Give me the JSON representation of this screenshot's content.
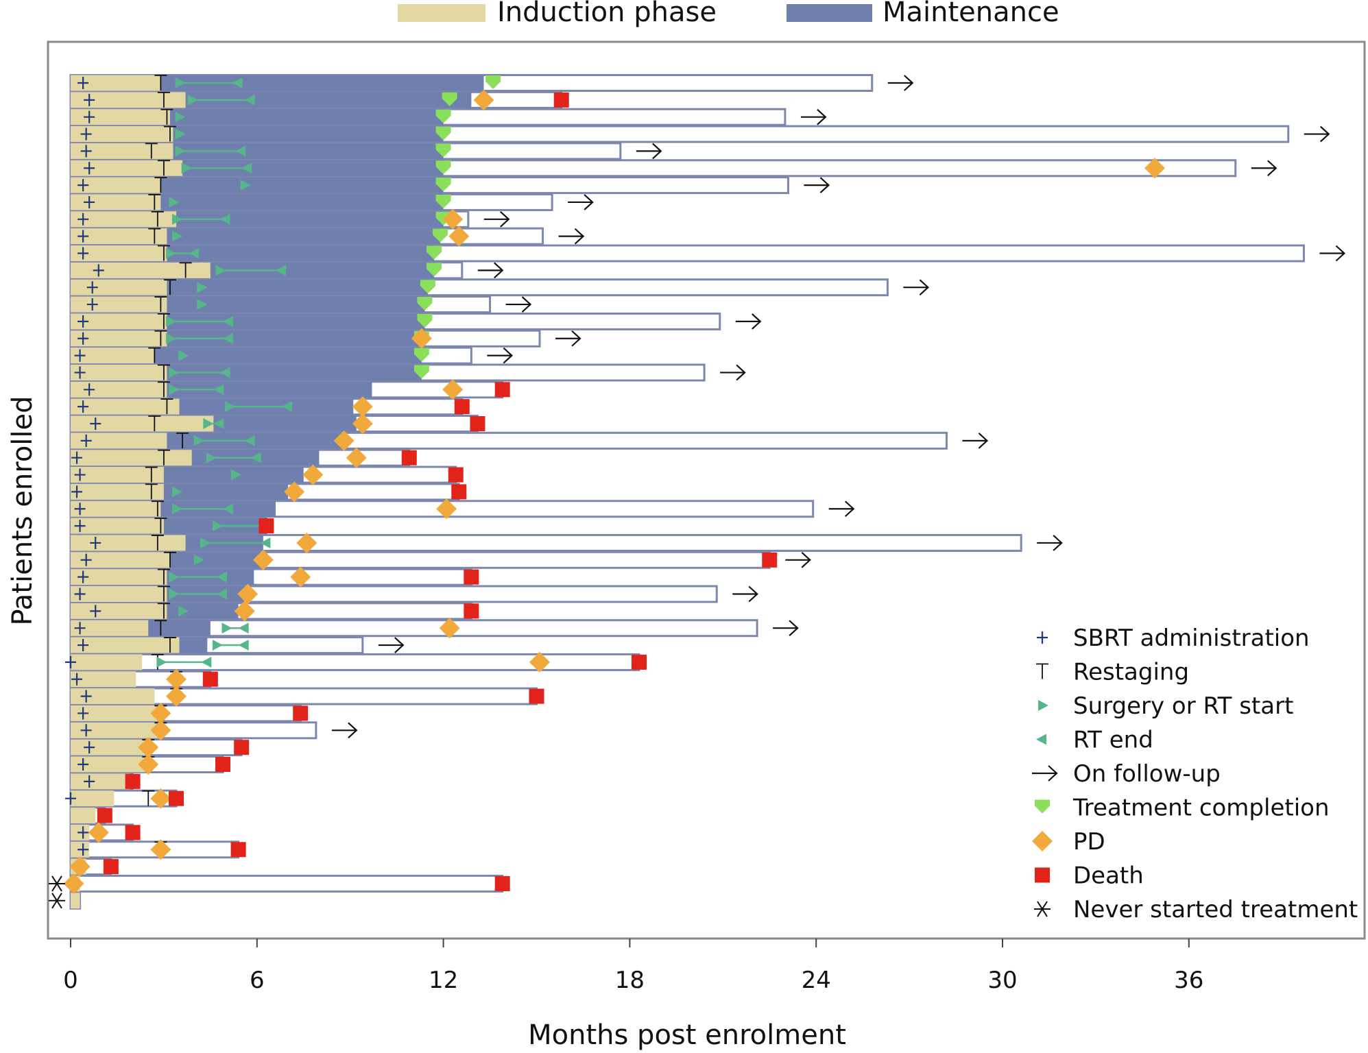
{
  "chart_data": {
    "type": "swimmer",
    "title": "",
    "xlabel": "Months post enrolment",
    "ylabel": "Patients enrolled",
    "xlim": [
      -0.8,
      41.5
    ],
    "xticks": [
      0,
      6,
      12,
      18,
      24,
      30,
      36
    ],
    "phase_legend": [
      "Induction phase",
      "Maintenance"
    ],
    "marker_legend": {
      "sbrt": "SBRT administration",
      "restage": "Restaging",
      "rtstart": "Surgery or RT start",
      "rtend": "RT end",
      "followup": "On follow-up",
      "complete": "Treatment completion",
      "pd": "PD",
      "death": "Death",
      "never": "Never started treatment"
    },
    "colors": {
      "induction": "#e3d7a3",
      "maintenance": "#6f7fae",
      "bar_outline": "#7d87ad",
      "sbrt": "#1f3a78",
      "rtmarker": "#57b58a",
      "complete": "#8ae05a",
      "pd": "#f2a93b",
      "death": "#e2231a"
    },
    "patients": [
      {
        "induction": 2.9,
        "maintenance": 13.3,
        "end": 25.8,
        "followup": true,
        "sbrt": 0.4,
        "restage": [
          2.9
        ],
        "rt": [
          3.5,
          5.4
        ],
        "complete": 13.6,
        "pd": null,
        "death": null
      },
      {
        "induction": 3.7,
        "maintenance": 12.9,
        "end": 15.8,
        "followup": false,
        "sbrt": 0.6,
        "restage": [
          3.0
        ],
        "rt": [
          3.9,
          5.8
        ],
        "complete": 12.2,
        "pd": 13.3,
        "death": 15.8
      },
      {
        "induction": 3.2,
        "maintenance": 12.0,
        "end": 23.0,
        "followup": true,
        "sbrt": 0.6,
        "restage": [
          3.1
        ],
        "rt": [
          3.5
        ],
        "complete": 12.0,
        "pd": null,
        "death": null
      },
      {
        "induction": 3.3,
        "maintenance": 12.0,
        "end": 39.2,
        "followup": true,
        "sbrt": 0.5,
        "restage": [
          3.2
        ],
        "rt": [
          3.5
        ],
        "complete": 12.0,
        "pd": null,
        "death": null
      },
      {
        "induction": 3.3,
        "maintenance": 12.0,
        "end": 17.7,
        "followup": true,
        "sbrt": 0.5,
        "restage": [
          2.6
        ],
        "rt": [
          3.5,
          5.5
        ],
        "complete": 12.0,
        "pd": null,
        "death": null
      },
      {
        "induction": 3.6,
        "maintenance": 12.0,
        "end": 37.5,
        "followup": true,
        "sbrt": 0.6,
        "restage": [
          3.0
        ],
        "rt": [
          3.7,
          5.7
        ],
        "complete": 12.0,
        "pd": 34.9,
        "death": null
      },
      {
        "induction": 2.9,
        "maintenance": 12.0,
        "end": 23.1,
        "followup": true,
        "sbrt": 0.4,
        "restage": [
          2.9
        ],
        "rt": [
          5.6
        ],
        "complete": 12.0,
        "pd": null,
        "death": null
      },
      {
        "induction": 2.9,
        "maintenance": 12.0,
        "end": 15.5,
        "followup": true,
        "sbrt": 0.6,
        "restage": [
          2.7
        ],
        "rt": [
          3.3
        ],
        "complete": 12.0,
        "pd": null,
        "death": null
      },
      {
        "induction": 3.4,
        "maintenance": 12.0,
        "end": 12.8,
        "followup": true,
        "sbrt": 0.4,
        "restage": [
          2.8
        ],
        "rt": [
          3.4,
          5.0
        ],
        "complete": 12.0,
        "pd": 12.3,
        "death": null
      },
      {
        "induction": 3.1,
        "maintenance": 11.9,
        "end": 15.2,
        "followup": true,
        "sbrt": 0.4,
        "restage": [
          2.7
        ],
        "rt": [
          3.4
        ],
        "complete": 11.9,
        "pd": 12.5,
        "death": null
      },
      {
        "induction": 3.1,
        "maintenance": 11.7,
        "end": 39.7,
        "followup": true,
        "sbrt": 0.4,
        "restage": [
          3.0
        ],
        "rt": [
          3.2,
          4.0
        ],
        "complete": 11.7,
        "pd": null,
        "death": null
      },
      {
        "induction": 4.5,
        "maintenance": 11.7,
        "end": 12.6,
        "followup": true,
        "sbrt": 0.9,
        "restage": [
          3.7
        ],
        "rt": [
          4.8,
          6.8
        ],
        "complete": 11.7,
        "pd": null,
        "death": null
      },
      {
        "induction": 3.1,
        "maintenance": 11.5,
        "end": 26.3,
        "followup": true,
        "sbrt": 0.7,
        "restage": [
          3.2
        ],
        "rt": [
          4.2
        ],
        "complete": 11.5,
        "pd": null,
        "death": null
      },
      {
        "induction": 3.1,
        "maintenance": 11.4,
        "end": 13.5,
        "followup": true,
        "sbrt": 0.7,
        "restage": [
          2.9
        ],
        "rt": [
          4.2
        ],
        "complete": 11.4,
        "pd": null,
        "death": null
      },
      {
        "induction": 3.1,
        "maintenance": 11.4,
        "end": 20.9,
        "followup": true,
        "sbrt": 0.4,
        "restage": [
          3.0
        ],
        "rt": [
          3.2,
          5.1
        ],
        "complete": 11.4,
        "pd": null,
        "death": null
      },
      {
        "induction": 3.1,
        "maintenance": 11.3,
        "end": 15.1,
        "followup": true,
        "sbrt": 0.4,
        "restage": [
          2.9
        ],
        "rt": [
          3.2,
          5.1
        ],
        "complete": 11.3,
        "pd": 11.3,
        "death": null
      },
      {
        "induction": 2.7,
        "maintenance": 11.3,
        "end": 12.9,
        "followup": true,
        "sbrt": 0.3,
        "restage": [
          2.7
        ],
        "rt": [
          3.6
        ],
        "complete": 11.3,
        "pd": null,
        "death": null
      },
      {
        "induction": 3.1,
        "maintenance": 11.3,
        "end": 20.4,
        "followup": true,
        "sbrt": 0.3,
        "restage": [
          3.0
        ],
        "rt": [
          3.3,
          5.0
        ],
        "complete": 11.3,
        "pd": null,
        "death": null
      },
      {
        "induction": 3.1,
        "maintenance": 9.7,
        "end": 13.9,
        "followup": false,
        "sbrt": 0.6,
        "restage": [
          3.0
        ],
        "rt": [
          3.3,
          4.8
        ],
        "complete": null,
        "pd": 12.3,
        "death": 13.9
      },
      {
        "induction": 3.5,
        "maintenance": 9.1,
        "end": 12.6,
        "followup": false,
        "sbrt": 0.4,
        "restage": [
          3.1
        ],
        "rt": [
          5.1,
          7.0
        ],
        "complete": null,
        "pd": 9.4,
        "death": 12.6
      },
      {
        "induction": 4.6,
        "maintenance": 9.2,
        "end": 13.1,
        "followup": false,
        "sbrt": 0.8,
        "restage": [
          2.7
        ],
        "rt": [
          4.4,
          4.8
        ],
        "complete": null,
        "pd": 9.4,
        "death": 13.1
      },
      {
        "induction": 3.1,
        "maintenance": 8.8,
        "end": 28.2,
        "followup": true,
        "sbrt": 0.5,
        "restage": [
          3.6
        ],
        "rt": [
          4.1,
          5.8
        ],
        "complete": null,
        "pd": 8.8,
        "death": null
      },
      {
        "induction": 3.9,
        "maintenance": 8.0,
        "end": 10.9,
        "followup": false,
        "sbrt": 0.2,
        "restage": [
          3.0
        ],
        "rt": [
          4.5,
          6.0
        ],
        "complete": null,
        "pd": 9.2,
        "death": 10.9
      },
      {
        "induction": 3.0,
        "maintenance": 7.5,
        "end": 12.4,
        "followup": false,
        "sbrt": 0.3,
        "restage": [
          2.6
        ],
        "rt": [
          5.3
        ],
        "complete": null,
        "pd": 7.8,
        "death": 12.4
      },
      {
        "induction": 3.0,
        "maintenance": 7.0,
        "end": 12.5,
        "followup": false,
        "sbrt": 0.2,
        "restage": [
          2.6
        ],
        "rt": [
          3.4
        ],
        "complete": null,
        "pd": 7.2,
        "death": 12.5
      },
      {
        "induction": 2.9,
        "maintenance": 6.6,
        "end": 23.9,
        "followup": true,
        "sbrt": 0.3,
        "restage": [
          2.8
        ],
        "rt": [
          3.4,
          5.1
        ],
        "complete": null,
        "pd": 12.1,
        "death": null
      },
      {
        "induction": 3.0,
        "maintenance": 6.3,
        "end": 6.3,
        "followup": false,
        "sbrt": 0.3,
        "restage": [
          2.9
        ],
        "rt": [
          4.7,
          6.2
        ],
        "complete": null,
        "pd": null,
        "death": 6.3
      },
      {
        "induction": 3.7,
        "maintenance": 6.2,
        "end": 30.6,
        "followup": true,
        "sbrt": 0.8,
        "restage": [
          2.8
        ],
        "rt": [
          4.3,
          6.3
        ],
        "complete": null,
        "pd": 7.6,
        "death": null
      },
      {
        "induction": 3.2,
        "maintenance": 6.1,
        "end": 22.5,
        "followup": true,
        "sbrt": 0.5,
        "restage": [
          3.2
        ],
        "rt": [
          4.1
        ],
        "complete": null,
        "pd": 6.2,
        "death": 22.5
      },
      {
        "induction": 3.1,
        "maintenance": 5.9,
        "end": 12.9,
        "followup": false,
        "sbrt": 0.4,
        "restage": [
          3.0
        ],
        "rt": [
          3.3,
          4.9
        ],
        "complete": null,
        "pd": 7.4,
        "death": 12.9
      },
      {
        "induction": 3.1,
        "maintenance": 5.8,
        "end": 20.8,
        "followup": true,
        "sbrt": 0.3,
        "restage": [
          3.0
        ],
        "rt": [
          3.3,
          4.9
        ],
        "complete": null,
        "pd": 5.7,
        "death": null
      },
      {
        "induction": 3.1,
        "maintenance": 5.4,
        "end": 12.9,
        "followup": false,
        "sbrt": 0.8,
        "restage": [
          3.0
        ],
        "rt": [
          3.6
        ],
        "complete": null,
        "pd": 5.6,
        "death": 12.9
      },
      {
        "induction": 2.5,
        "maintenance": 4.5,
        "end": 22.1,
        "followup": true,
        "sbrt": 0.3,
        "restage": [
          2.9
        ],
        "rt": [
          5.0,
          5.6
        ],
        "complete": null,
        "pd": 12.2,
        "death": null
      },
      {
        "induction": 3.5,
        "maintenance": 4.4,
        "end": 9.4,
        "followup": true,
        "sbrt": 0.4,
        "restage": [
          3.2
        ],
        "rt": [
          4.7,
          5.6
        ],
        "complete": null,
        "pd": null,
        "death": null
      },
      {
        "induction": 2.3,
        "maintenance": null,
        "end": 18.3,
        "followup": false,
        "sbrt": 0.0,
        "restage": [
          2.8
        ],
        "rt": [
          2.9,
          4.4
        ],
        "complete": null,
        "pd": 15.1,
        "death": 18.3
      },
      {
        "induction": 2.1,
        "maintenance": null,
        "end": 4.5,
        "followup": false,
        "sbrt": 0.2,
        "restage": [
          3.4
        ],
        "rt": [],
        "complete": null,
        "pd": 3.4,
        "death": 4.5
      },
      {
        "induction": 2.7,
        "maintenance": null,
        "end": 15.0,
        "followup": false,
        "sbrt": 0.5,
        "restage": [
          3.4
        ],
        "rt": [],
        "complete": null,
        "pd": 3.4,
        "death": 15.0
      },
      {
        "induction": 2.9,
        "maintenance": null,
        "end": 7.4,
        "followup": false,
        "sbrt": 0.4,
        "restage": [
          2.9
        ],
        "rt": [],
        "complete": null,
        "pd": 2.9,
        "death": 7.4
      },
      {
        "induction": 2.9,
        "maintenance": null,
        "end": 7.9,
        "followup": true,
        "sbrt": 0.5,
        "restage": [
          2.9
        ],
        "rt": [],
        "complete": null,
        "pd": 2.9,
        "death": null
      },
      {
        "induction": 2.5,
        "maintenance": null,
        "end": 5.5,
        "followup": false,
        "sbrt": 0.6,
        "restage": [
          2.5
        ],
        "rt": [],
        "complete": null,
        "pd": 2.5,
        "death": 5.5
      },
      {
        "induction": 2.4,
        "maintenance": null,
        "end": 4.9,
        "followup": false,
        "sbrt": 0.4,
        "restage": [
          2.5
        ],
        "rt": [],
        "complete": null,
        "pd": 2.5,
        "death": 4.9
      },
      {
        "induction": 1.9,
        "maintenance": null,
        "end": 2.0,
        "followup": false,
        "sbrt": 0.6,
        "restage": [],
        "rt": [],
        "complete": null,
        "pd": null,
        "death": 2.0
      },
      {
        "induction": 1.4,
        "maintenance": null,
        "end": 3.4,
        "followup": false,
        "sbrt": 0.0,
        "restage": [
          2.5
        ],
        "rt": [],
        "complete": null,
        "pd": 2.9,
        "death": 3.4
      },
      {
        "induction": 0.8,
        "maintenance": null,
        "end": 1.1,
        "followup": false,
        "sbrt": null,
        "restage": [],
        "rt": [],
        "complete": null,
        "pd": null,
        "death": 1.1
      },
      {
        "induction": 0.6,
        "maintenance": null,
        "end": 2.0,
        "followup": false,
        "sbrt": 0.4,
        "restage": [],
        "rt": [],
        "complete": null,
        "pd": 0.9,
        "death": 2.0
      },
      {
        "induction": 0.6,
        "maintenance": null,
        "end": 5.4,
        "followup": false,
        "sbrt": 0.4,
        "restage": [
          2.9
        ],
        "rt": [],
        "complete": null,
        "pd": 2.9,
        "death": 5.4
      },
      {
        "induction": 0.5,
        "maintenance": null,
        "end": 1.3,
        "followup": false,
        "sbrt": null,
        "restage": [],
        "rt": [],
        "complete": null,
        "pd": 0.3,
        "death": 1.3
      },
      {
        "induction": 0.3,
        "maintenance": null,
        "end": 13.9,
        "followup": false,
        "sbrt": null,
        "restage": [],
        "rt": [],
        "complete": null,
        "pd": 0.1,
        "death": 13.9,
        "never": true
      },
      {
        "induction": 0.3,
        "maintenance": null,
        "end": 0.3,
        "followup": false,
        "sbrt": null,
        "restage": [],
        "rt": [],
        "complete": null,
        "pd": null,
        "death": null,
        "never": true
      }
    ]
  }
}
